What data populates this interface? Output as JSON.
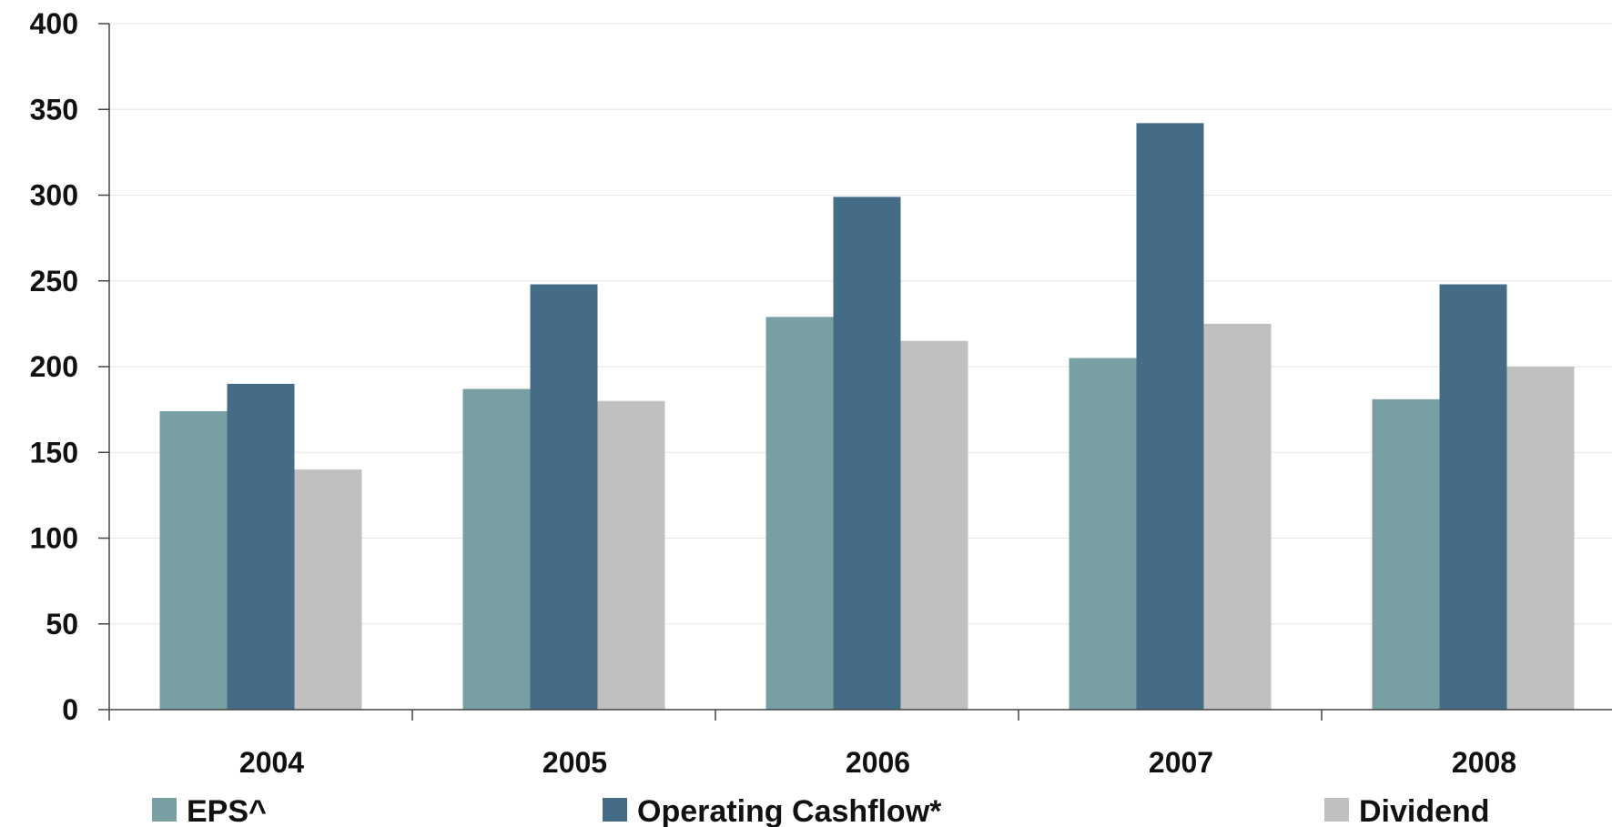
{
  "chart_data": {
    "type": "bar",
    "categories": [
      "2004",
      "2005",
      "2006",
      "2007",
      "2008"
    ],
    "series": [
      {
        "name": "EPS^",
        "color": "#78a0a2",
        "values": [
          174,
          187,
          229,
          205,
          181
        ]
      },
      {
        "name": "Operating Cashflow*",
        "color": "#456c87",
        "values": [
          190,
          248,
          299,
          342,
          248
        ]
      },
      {
        "name": "Dividend",
        "color": "#c0c0c0",
        "values": [
          140,
          180,
          215,
          225,
          200
        ]
      }
    ],
    "ylim": [
      0,
      400
    ],
    "yticks": [
      0,
      50,
      100,
      150,
      200,
      250,
      300,
      350,
      400
    ],
    "grid": true,
    "legend_position": "bottom"
  }
}
